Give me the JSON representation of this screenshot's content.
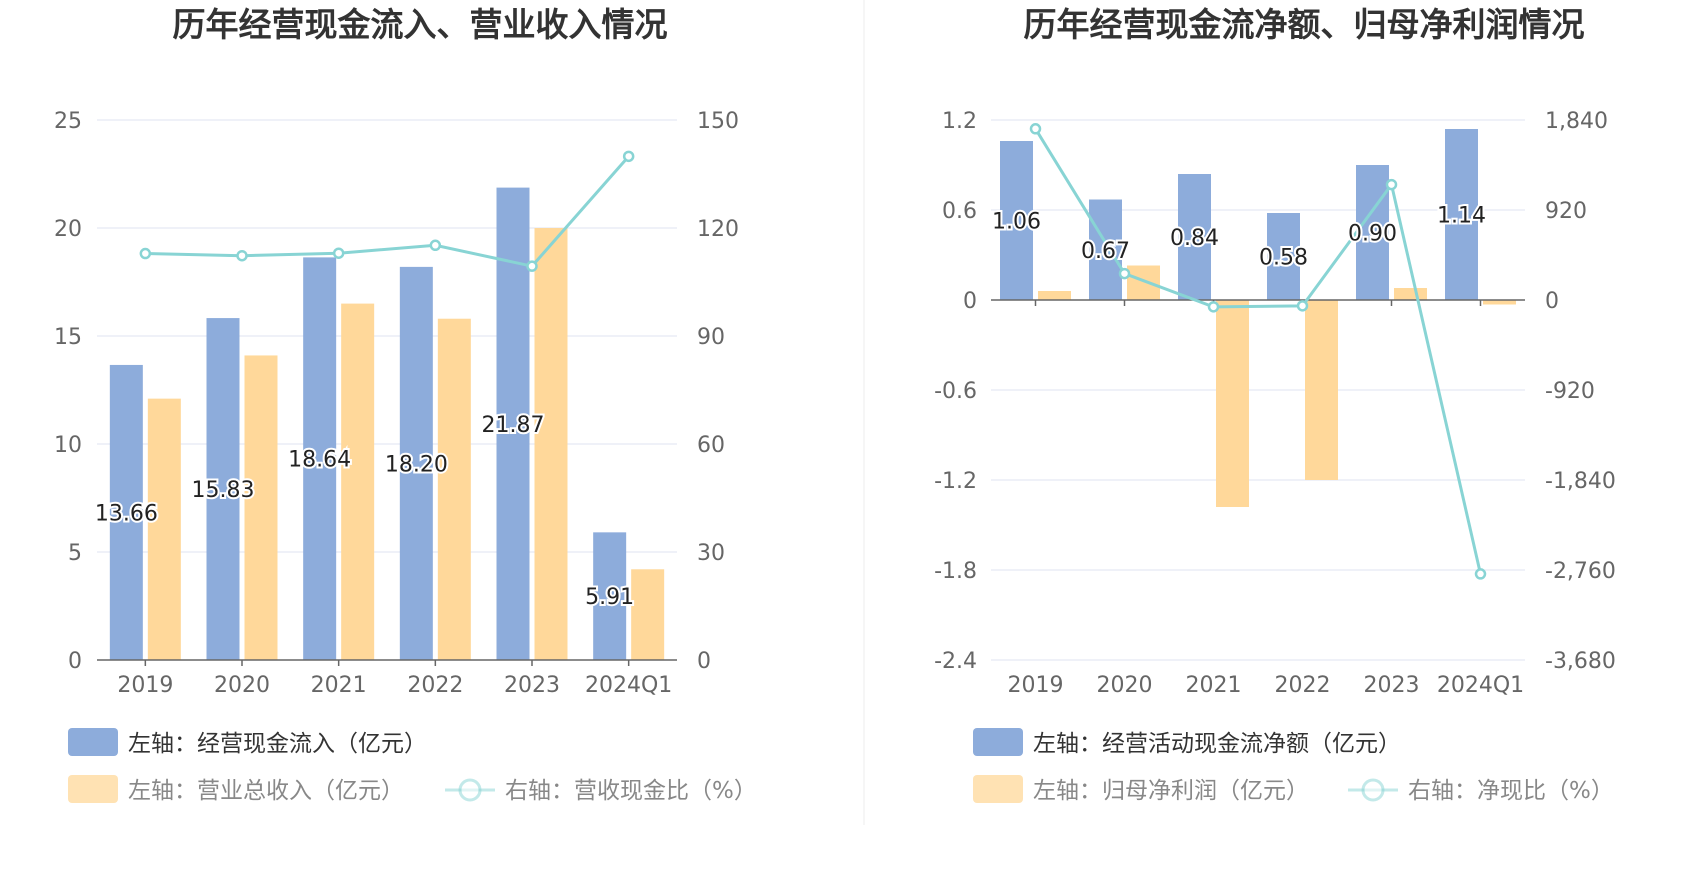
{
  "colors": {
    "bar_primary": "#8dacdb",
    "bar_secondary": "#ffd89a",
    "line": "#88d4d4",
    "grid": "#dfe3f0",
    "axis": "#666666",
    "legend_text_primary": "#333333",
    "legend_text_secondary": "#888888",
    "divider": "#eeeeee"
  },
  "chart_data": [
    {
      "type": "bar",
      "title": "历年经营现金流入、营业收入情况",
      "categories": [
        "2019",
        "2020",
        "2021",
        "2022",
        "2023",
        "2024Q1"
      ],
      "left_axis": {
        "ylim": [
          0,
          25
        ],
        "ticks": [
          0,
          5,
          10,
          15,
          20,
          25
        ],
        "tick_labels": [
          "0",
          "5",
          "10",
          "15",
          "20",
          "25"
        ]
      },
      "right_axis": {
        "ylim": [
          0,
          150
        ],
        "ticks": [
          0,
          30,
          60,
          90,
          120,
          150
        ],
        "tick_labels": [
          "0",
          "30",
          "60",
          "90",
          "120",
          "150"
        ]
      },
      "grid": true,
      "legend_position": "bottom-left",
      "series": [
        {
          "name": "左轴：经营现金流入（亿元）",
          "kind": "bar",
          "axis": "left",
          "values": [
            13.66,
            15.83,
            18.64,
            18.2,
            21.87,
            5.91
          ],
          "labels": [
            "13.66",
            "15.83",
            "18.64",
            "18.20",
            "21.87",
            "5.91"
          ]
        },
        {
          "name": "左轴：营业总收入（亿元）",
          "kind": "bar",
          "axis": "left",
          "values": [
            12.1,
            14.1,
            16.5,
            15.8,
            20.0,
            4.2
          ]
        },
        {
          "name": "右轴：营收现金比（%）",
          "kind": "line",
          "axis": "right",
          "values": [
            112.9,
            112.3,
            113.0,
            115.2,
            109.4,
            139.9
          ]
        }
      ]
    },
    {
      "type": "bar",
      "title": "历年经营现金流净额、归母净利润情况",
      "categories": [
        "2019",
        "2020",
        "2021",
        "2022",
        "2023",
        "2024Q1"
      ],
      "left_axis": {
        "ylim": [
          -2.4,
          1.2
        ],
        "ticks": [
          1.2,
          0.6,
          0,
          -0.6,
          -1.2,
          -1.8,
          -2.4
        ],
        "tick_labels": [
          "1.2",
          "0.6",
          "0",
          "-0.6",
          "-1.2",
          "-1.8",
          "-2.4"
        ]
      },
      "right_axis": {
        "ylim": [
          -3680,
          1840
        ],
        "ticks": [
          1840,
          920,
          0,
          -920,
          -1840,
          -2760,
          -3680
        ],
        "tick_labels": [
          "1,840",
          "920",
          "0",
          "-920",
          "-1,840",
          "-2,760",
          "-3,680"
        ]
      },
      "grid": true,
      "legend_position": "bottom-left",
      "series": [
        {
          "name": "左轴：经营活动现金流净额（亿元）",
          "kind": "bar",
          "axis": "left",
          "values": [
            1.06,
            0.67,
            0.84,
            0.58,
            0.9,
            1.14
          ],
          "labels": [
            "1.06",
            "0.67",
            "0.84",
            "0.58",
            "0.90",
            "1.14"
          ]
        },
        {
          "name": "左轴：归母净利润（亿元）",
          "kind": "bar",
          "axis": "left",
          "values": [
            0.06,
            0.23,
            -1.38,
            -1.2,
            0.08,
            -0.03
          ]
        },
        {
          "name": "右轴：净现比（%）",
          "kind": "line",
          "axis": "right",
          "values": [
            1750,
            270,
            -70,
            -60,
            1180,
            -2800
          ]
        }
      ]
    }
  ]
}
